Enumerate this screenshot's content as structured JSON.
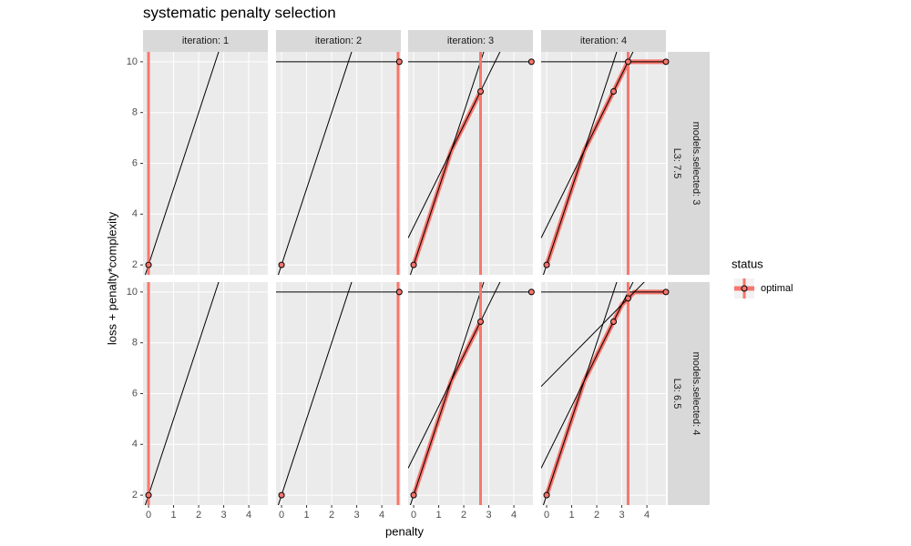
{
  "chart_data": {
    "type": "facet",
    "title": "systematic penalty selection",
    "x_label": "penalty",
    "y_label": "loss + penalty*complexity",
    "xlim": [
      -0.22,
      4.76
    ],
    "ylim": [
      1.61,
      10.39
    ],
    "xticks": [
      0,
      1,
      2,
      3,
      4
    ],
    "yticks": [
      2,
      4,
      6,
      8,
      10
    ],
    "col_labels": [
      "iteration: 1",
      "iteration: 2",
      "iteration: 3",
      "iteration: 4"
    ],
    "row_labels": [
      [
        "models.selected: 3",
        "L3: 7.5"
      ],
      [
        "models.selected: 4",
        "L3: 6.5"
      ]
    ],
    "legend": {
      "title": "status",
      "name": "optimal",
      "color": "#f8766d"
    },
    "panels": [
      [
        {
          "lines": {
            "intercept": [
              2
            ],
            "slope": [
              3
            ]
          },
          "points": {
            "x": [
              0
            ],
            "y": [
              2
            ]
          },
          "vline": 0
        },
        {
          "lines": {
            "intercept": [
              2,
              10
            ],
            "slope": [
              3,
              0
            ]
          },
          "points": {
            "x": [
              0,
              4.7
            ],
            "y": [
              2,
              10
            ]
          },
          "vline": 4.65
        },
        {
          "lines": {
            "intercept": [
              2,
              3.5,
              10
            ],
            "slope": [
              3,
              2,
              0
            ]
          },
          "points": {
            "x": [
              0,
              2.67,
              4.7
            ],
            "y": [
              2,
              8.83,
              10
            ]
          },
          "path": {
            "x": [
              0,
              1.5,
              2.67
            ],
            "y": [
              2,
              6.5,
              8.83
            ]
          },
          "vline": 2.67
        },
        {
          "lines": {
            "intercept": [
              2,
              3.5,
              10
            ],
            "slope": [
              3,
              2,
              0
            ]
          },
          "points": {
            "x": [
              0,
              2.67,
              3.25,
              4.76
            ],
            "y": [
              2,
              8.83,
              10,
              10
            ]
          },
          "path": {
            "x": [
              0,
              1.5,
              3.25,
              4.76
            ],
            "y": [
              2,
              6.5,
              10,
              10
            ]
          },
          "vline": 3.25
        }
      ],
      [
        {
          "lines": {
            "intercept": [
              2
            ],
            "slope": [
              3
            ]
          },
          "points": {
            "x": [
              0
            ],
            "y": [
              2
            ]
          },
          "vline": 0
        },
        {
          "lines": {
            "intercept": [
              2,
              10
            ],
            "slope": [
              3,
              0
            ]
          },
          "points": {
            "x": [
              0,
              4.7
            ],
            "y": [
              2,
              10
            ]
          },
          "vline": 4.65
        },
        {
          "lines": {
            "intercept": [
              2,
              3.5,
              10
            ],
            "slope": [
              3,
              2,
              0
            ]
          },
          "points": {
            "x": [
              0,
              2.67,
              4.7
            ],
            "y": [
              2,
              8.83,
              10
            ]
          },
          "path": {
            "x": [
              0,
              1.5,
              2.67
            ],
            "y": [
              2,
              6.5,
              8.83
            ]
          },
          "vline": 2.67
        },
        {
          "lines": {
            "intercept": [
              2,
              3.5,
              6.5,
              10
            ],
            "slope": [
              3,
              2,
              1,
              0
            ]
          },
          "points": {
            "x": [
              0,
              2.67,
              3.25,
              4.76
            ],
            "y": [
              2,
              8.83,
              9.75,
              10
            ]
          },
          "path": {
            "x": [
              0,
              1.5,
              3,
              3.5,
              4.76
            ],
            "y": [
              2,
              6.5,
              9.5,
              10,
              10
            ]
          },
          "vline": 3.25
        }
      ]
    ]
  }
}
